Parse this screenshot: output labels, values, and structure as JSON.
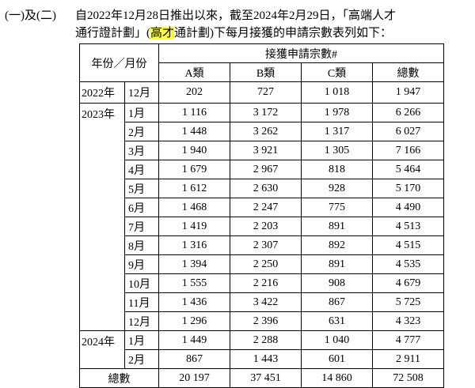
{
  "header": {
    "label": "(一)及(二)",
    "line1": "自2022年12月28日推出以來，截至2024年2月29日，「高端人才",
    "line2_start": "通行證計劃」(",
    "line2_highlight": "高才",
    "line2_end": "通計劃)下每月接獲的申請宗數表列如下："
  },
  "table": {
    "column_group": "年份／月份",
    "value_group": "接獲申請宗數#",
    "columns": [
      "A類",
      "B類",
      "C類",
      "總數"
    ],
    "groups": [
      {
        "year": "2022年",
        "rows": [
          {
            "month": "12月",
            "values": [
              "202",
              "727",
              "1 018",
              "1 947"
            ]
          }
        ]
      },
      {
        "year": "2023年",
        "rows": [
          {
            "month": "1月",
            "values": [
              "1 116",
              "3 172",
              "1 978",
              "6 266"
            ]
          },
          {
            "month": "2月",
            "values": [
              "1 448",
              "3 262",
              "1 317",
              "6 027"
            ]
          },
          {
            "month": "3月",
            "values": [
              "1 940",
              "3 921",
              "1 305",
              "7 166"
            ]
          },
          {
            "month": "4月",
            "values": [
              "1 679",
              "2 967",
              "818",
              "5 464"
            ]
          },
          {
            "month": "5月",
            "values": [
              "1 612",
              "2 630",
              "928",
              "5 170"
            ]
          },
          {
            "month": "6月",
            "values": [
              "1 468",
              "2 247",
              "775",
              "4 490"
            ]
          },
          {
            "month": "7月",
            "values": [
              "1 419",
              "2 203",
              "891",
              "4 513"
            ]
          },
          {
            "month": "8月",
            "values": [
              "1 316",
              "2 307",
              "892",
              "4 515"
            ]
          },
          {
            "month": "9月",
            "values": [
              "1 394",
              "2 250",
              "891",
              "4 535"
            ]
          },
          {
            "month": "10月",
            "values": [
              "1 555",
              "2 216",
              "908",
              "4 679"
            ]
          },
          {
            "month": "11月",
            "values": [
              "1 436",
              "3 422",
              "867",
              "5 725"
            ]
          },
          {
            "month": "12月",
            "values": [
              "1 296",
              "2 396",
              "631",
              "4 323"
            ]
          }
        ]
      },
      {
        "year": "2024年",
        "rows": [
          {
            "month": "1月",
            "values": [
              "1 449",
              "2 288",
              "1 040",
              "4 777"
            ]
          },
          {
            "month": "2月",
            "values": [
              "867",
              "1 443",
              "601",
              "2 911"
            ]
          }
        ]
      }
    ],
    "total": {
      "label": "總數",
      "values": [
        "20 197",
        "37 451",
        "14 860",
        "72 508"
      ]
    }
  }
}
